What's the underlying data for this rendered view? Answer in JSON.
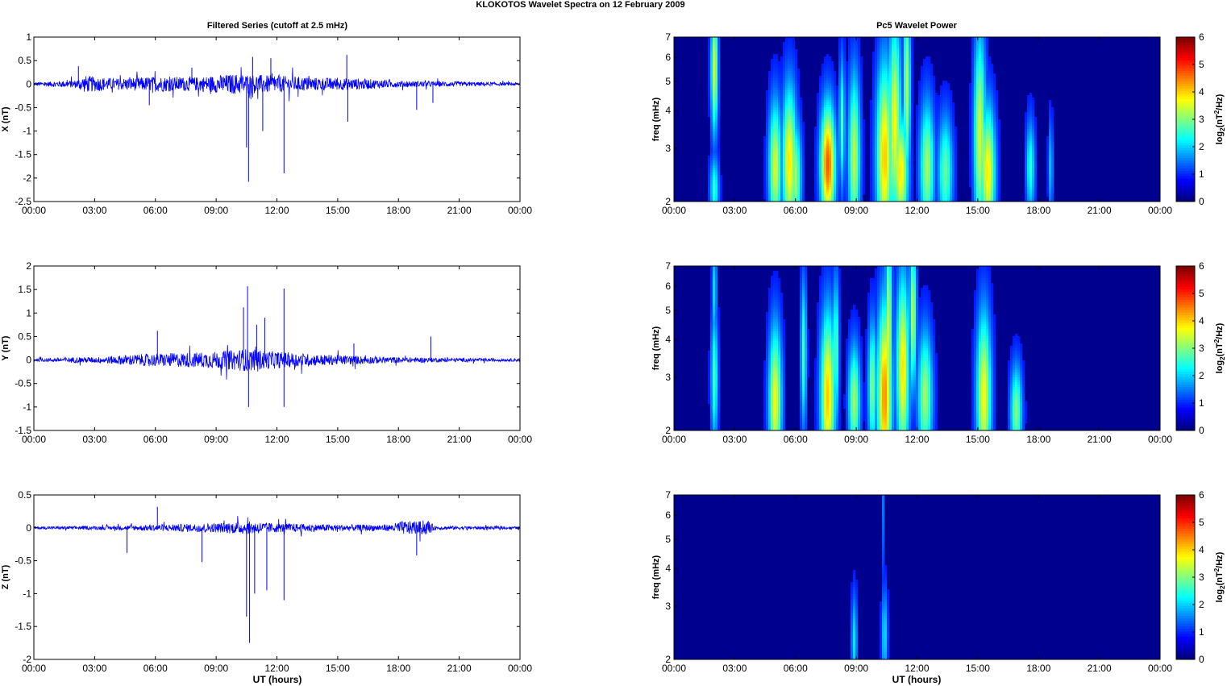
{
  "figure": {
    "title": "KLOKOTOS Wavelet Spectra on 12 February  2009",
    "left_title": "Filtered Series (cutoff at 2.5 mHz)",
    "right_title": "Pc5 Wavelet Power",
    "xlabel": "UT (hours)"
  },
  "colors": {
    "series": "#0000ff",
    "background": "#00008f",
    "axis": "#000000"
  },
  "chart_data": [
    {
      "type": "line",
      "name": "x-series",
      "ylabel": "X (nT)",
      "xlim": [
        0,
        24
      ],
      "ylim": [
        -2.5,
        1
      ],
      "x_ticks": [
        "00:00",
        "03:00",
        "06:00",
        "09:00",
        "12:00",
        "15:00",
        "18:00",
        "21:00",
        "00:00"
      ],
      "y_ticks": [
        -2.5,
        -2,
        -1.5,
        -1,
        -0.5,
        0,
        0.5,
        1
      ],
      "envelope": [
        {
          "x": 0,
          "amp": 0.04
        },
        {
          "x": 2,
          "amp": 0.08
        },
        {
          "x": 2.5,
          "amp": 0.18
        },
        {
          "x": 4,
          "amp": 0.12
        },
        {
          "x": 6,
          "amp": 0.16
        },
        {
          "x": 8,
          "amp": 0.15
        },
        {
          "x": 10,
          "amp": 0.22
        },
        {
          "x": 12,
          "amp": 0.18
        },
        {
          "x": 14,
          "amp": 0.14
        },
        {
          "x": 16,
          "amp": 0.12
        },
        {
          "x": 18,
          "amp": 0.07
        },
        {
          "x": 21,
          "amp": 0.05
        },
        {
          "x": 24,
          "amp": 0.03
        }
      ],
      "spikes": [
        {
          "x": 2.2,
          "y": 0.38
        },
        {
          "x": 5.7,
          "y": -0.45
        },
        {
          "x": 7.8,
          "y": 0.35
        },
        {
          "x": 10.5,
          "y": -1.35
        },
        {
          "x": 10.6,
          "y": -2.08
        },
        {
          "x": 10.8,
          "y": 0.58
        },
        {
          "x": 11.3,
          "y": -1.0
        },
        {
          "x": 11.7,
          "y": 0.55
        },
        {
          "x": 12.35,
          "y": -1.9
        },
        {
          "x": 15.45,
          "y": 0.62
        },
        {
          "x": 15.5,
          "y": -0.8
        },
        {
          "x": 18.9,
          "y": -0.55
        },
        {
          "x": 19.7,
          "y": -0.4
        }
      ]
    },
    {
      "type": "heatmap",
      "name": "x-power",
      "ylabel": "freq (mHz)",
      "xlim": [
        0,
        24
      ],
      "ylim": [
        2,
        7
      ],
      "yscale": "log",
      "x_ticks": [
        "00:00",
        "03:00",
        "06:00",
        "09:00",
        "12:00",
        "15:00",
        "18:00",
        "21:00",
        "00:00"
      ],
      "y_ticks": [
        2,
        3,
        4,
        5,
        6,
        7
      ],
      "colorbar": {
        "label": "log2(nT^2/Hz)",
        "range": [
          0,
          6
        ],
        "ticks": [
          0,
          1,
          2,
          3,
          4,
          5,
          6
        ]
      },
      "blobs": [
        {
          "t": 2.0,
          "f": 5.5,
          "st": 0.12,
          "sf": 0.35,
          "v": 3.2
        },
        {
          "t": 2.0,
          "f": 2.2,
          "st": 0.15,
          "sf": 0.18,
          "v": 2.0
        },
        {
          "t": 5.0,
          "f": 2.6,
          "st": 0.22,
          "sf": 0.35,
          "v": 3.2
        },
        {
          "t": 5.7,
          "f": 2.7,
          "st": 0.25,
          "sf": 0.4,
          "v": 3.6
        },
        {
          "t": 6.0,
          "f": 2.4,
          "st": 0.2,
          "sf": 0.3,
          "v": 2.8
        },
        {
          "t": 7.6,
          "f": 2.65,
          "st": 0.25,
          "sf": 0.32,
          "v": 4.6
        },
        {
          "t": 8.3,
          "f": 3.6,
          "st": 0.1,
          "sf": 0.35,
          "v": 2.2
        },
        {
          "t": 8.9,
          "f": 2.8,
          "st": 0.2,
          "sf": 0.45,
          "v": 3.0
        },
        {
          "t": 10.4,
          "f": 2.8,
          "st": 0.28,
          "sf": 0.5,
          "v": 3.8
        },
        {
          "t": 10.9,
          "f": 3.6,
          "st": 0.22,
          "sf": 0.55,
          "v": 3.4
        },
        {
          "t": 11.2,
          "f": 2.5,
          "st": 0.25,
          "sf": 0.3,
          "v": 3.6
        },
        {
          "t": 11.5,
          "f": 4.8,
          "st": 0.12,
          "sf": 0.5,
          "v": 3.0
        },
        {
          "t": 12.5,
          "f": 2.6,
          "st": 0.25,
          "sf": 0.35,
          "v": 2.8
        },
        {
          "t": 13.4,
          "f": 2.5,
          "st": 0.25,
          "sf": 0.3,
          "v": 2.4
        },
        {
          "t": 15.1,
          "f": 3.3,
          "st": 0.2,
          "sf": 0.55,
          "v": 3.2
        },
        {
          "t": 15.5,
          "f": 2.5,
          "st": 0.25,
          "sf": 0.35,
          "v": 3.6
        },
        {
          "t": 17.6,
          "f": 2.6,
          "st": 0.15,
          "sf": 0.25,
          "v": 2.0
        },
        {
          "t": 18.6,
          "f": 2.6,
          "st": 0.08,
          "sf": 0.25,
          "v": 1.4
        }
      ]
    },
    {
      "type": "line",
      "name": "y-series",
      "ylabel": "Y (nT)",
      "xlim": [
        0,
        24
      ],
      "ylim": [
        -1.5,
        2
      ],
      "x_ticks": [
        "00:00",
        "03:00",
        "06:00",
        "09:00",
        "12:00",
        "15:00",
        "18:00",
        "21:00",
        "00:00"
      ],
      "y_ticks": [
        -1.5,
        -1,
        -0.5,
        0,
        0.5,
        1,
        1.5,
        2
      ],
      "envelope": [
        {
          "x": 0,
          "amp": 0.03
        },
        {
          "x": 2,
          "amp": 0.06
        },
        {
          "x": 3,
          "amp": 0.06
        },
        {
          "x": 5,
          "amp": 0.12
        },
        {
          "x": 7,
          "amp": 0.15
        },
        {
          "x": 9,
          "amp": 0.18
        },
        {
          "x": 10.5,
          "amp": 0.24
        },
        {
          "x": 12,
          "amp": 0.18
        },
        {
          "x": 14,
          "amp": 0.12
        },
        {
          "x": 16,
          "amp": 0.09
        },
        {
          "x": 18,
          "amp": 0.06
        },
        {
          "x": 21,
          "amp": 0.04
        },
        {
          "x": 24,
          "amp": 0.03
        }
      ],
      "spikes": [
        {
          "x": 6.1,
          "y": 0.62
        },
        {
          "x": 10.35,
          "y": 1.12
        },
        {
          "x": 10.55,
          "y": 1.57
        },
        {
          "x": 10.6,
          "y": -1.0
        },
        {
          "x": 11.0,
          "y": 0.75
        },
        {
          "x": 11.4,
          "y": 0.9
        },
        {
          "x": 12.35,
          "y": 1.52
        },
        {
          "x": 12.35,
          "y": -1.0
        },
        {
          "x": 15.8,
          "y": 0.35
        },
        {
          "x": 19.6,
          "y": 0.5
        }
      ]
    },
    {
      "type": "heatmap",
      "name": "y-power",
      "ylabel": "freq (mHz)",
      "xlim": [
        0,
        24
      ],
      "ylim": [
        2,
        7
      ],
      "yscale": "log",
      "x_ticks": [
        "00:00",
        "03:00",
        "06:00",
        "09:00",
        "12:00",
        "15:00",
        "18:00",
        "21:00",
        "00:00"
      ],
      "y_ticks": [
        2,
        3,
        4,
        5,
        6,
        7
      ],
      "colorbar": {
        "label": "log2(nT^2/Hz)",
        "range": [
          0,
          6
        ],
        "ticks": [
          0,
          1,
          2,
          3,
          4,
          5,
          6
        ]
      },
      "blobs": [
        {
          "t": 2.0,
          "f": 3.0,
          "st": 0.12,
          "sf": 0.35,
          "v": 2.2
        },
        {
          "t": 2.0,
          "f": 5.8,
          "st": 0.08,
          "sf": 0.3,
          "v": 1.6
        },
        {
          "t": 5.0,
          "f": 2.5,
          "st": 0.22,
          "sf": 0.4,
          "v": 3.4
        },
        {
          "t": 6.4,
          "f": 3.6,
          "st": 0.1,
          "sf": 0.4,
          "v": 2.2
        },
        {
          "t": 7.6,
          "f": 2.6,
          "st": 0.25,
          "sf": 0.45,
          "v": 3.8
        },
        {
          "t": 8.0,
          "f": 3.7,
          "st": 0.1,
          "sf": 0.4,
          "v": 2.4
        },
        {
          "t": 8.9,
          "f": 2.5,
          "st": 0.2,
          "sf": 0.3,
          "v": 2.8
        },
        {
          "t": 9.8,
          "f": 2.8,
          "st": 0.15,
          "sf": 0.35,
          "v": 2.6
        },
        {
          "t": 10.4,
          "f": 2.6,
          "st": 0.25,
          "sf": 0.5,
          "v": 4.2
        },
        {
          "t": 10.6,
          "f": 4.0,
          "st": 0.12,
          "sf": 0.6,
          "v": 3.2
        },
        {
          "t": 11.3,
          "f": 3.2,
          "st": 0.22,
          "sf": 0.5,
          "v": 3.6
        },
        {
          "t": 11.8,
          "f": 4.8,
          "st": 0.12,
          "sf": 0.4,
          "v": 3.0
        },
        {
          "t": 12.4,
          "f": 2.6,
          "st": 0.25,
          "sf": 0.35,
          "v": 2.8
        },
        {
          "t": 15.3,
          "f": 2.6,
          "st": 0.25,
          "sf": 0.45,
          "v": 3.4
        },
        {
          "t": 16.9,
          "f": 2.3,
          "st": 0.2,
          "sf": 0.25,
          "v": 2.6
        }
      ]
    },
    {
      "type": "line",
      "name": "z-series",
      "ylabel": "Z (nT)",
      "xlim": [
        0,
        24
      ],
      "ylim": [
        -2,
        0.5
      ],
      "x_ticks": [
        "00:00",
        "03:00",
        "06:00",
        "09:00",
        "12:00",
        "15:00",
        "18:00",
        "21:00",
        "00:00"
      ],
      "y_ticks": [
        -2,
        -1.5,
        -1,
        -0.5,
        0,
        0.5
      ],
      "envelope": [
        {
          "x": 0,
          "amp": 0.02
        },
        {
          "x": 4,
          "amp": 0.03
        },
        {
          "x": 6,
          "amp": 0.05
        },
        {
          "x": 9,
          "amp": 0.07
        },
        {
          "x": 10.5,
          "amp": 0.1
        },
        {
          "x": 12,
          "amp": 0.07
        },
        {
          "x": 15,
          "amp": 0.05
        },
        {
          "x": 17.7,
          "amp": 0.05
        },
        {
          "x": 18,
          "amp": 0.1
        },
        {
          "x": 19.5,
          "amp": 0.1
        },
        {
          "x": 19.8,
          "amp": 0.03
        },
        {
          "x": 24,
          "amp": 0.02
        }
      ],
      "spikes": [
        {
          "x": 4.6,
          "y": -0.38
        },
        {
          "x": 6.1,
          "y": 0.32
        },
        {
          "x": 8.3,
          "y": -0.52
        },
        {
          "x": 10.5,
          "y": -1.35
        },
        {
          "x": 10.65,
          "y": -1.75
        },
        {
          "x": 10.9,
          "y": -1.0
        },
        {
          "x": 11.5,
          "y": -0.95
        },
        {
          "x": 12.35,
          "y": -1.1
        },
        {
          "x": 18.9,
          "y": -0.42
        }
      ]
    },
    {
      "type": "heatmap",
      "name": "z-power",
      "ylabel": "freq (mHz)",
      "xlim": [
        0,
        24
      ],
      "ylim": [
        2,
        7
      ],
      "yscale": "log",
      "x_ticks": [
        "00:00",
        "03:00",
        "06:00",
        "09:00",
        "12:00",
        "15:00",
        "18:00",
        "21:00",
        "00:00"
      ],
      "y_ticks": [
        2,
        3,
        4,
        5,
        6,
        7
      ],
      "colorbar": {
        "label": "log2(nT^2/Hz)",
        "range": [
          0,
          6
        ],
        "ticks": [
          0,
          1,
          2,
          3,
          4,
          5,
          6
        ]
      },
      "blobs": [
        {
          "t": 8.9,
          "f": 2.3,
          "st": 0.1,
          "sf": 0.25,
          "v": 1.6
        },
        {
          "t": 10.4,
          "f": 2.4,
          "st": 0.1,
          "sf": 0.25,
          "v": 1.6
        },
        {
          "t": 10.3,
          "f": 6.5,
          "st": 0.04,
          "sf": 0.4,
          "v": 1.0
        }
      ]
    }
  ]
}
